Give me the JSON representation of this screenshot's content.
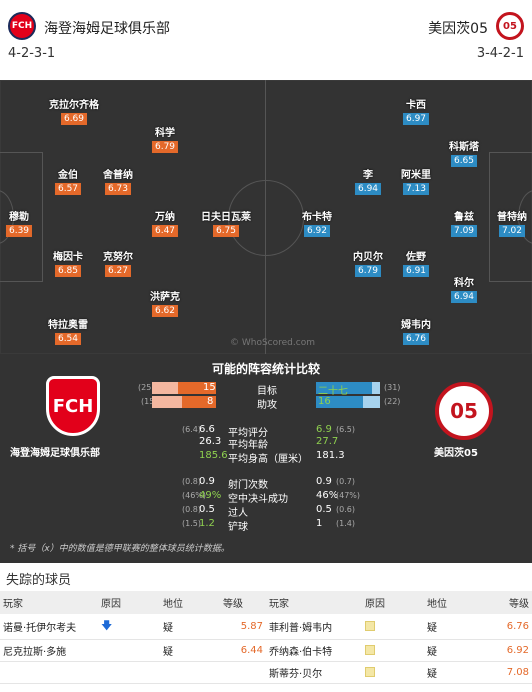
{
  "header": {
    "home_name": "海登海姆足球俱乐部",
    "away_name": "美因茨05",
    "home_formation": "4-2-3-1",
    "away_formation": "3-4-2-1",
    "home_crest": "FCH",
    "away_crest": "05"
  },
  "home_players": [
    {
      "name": "克拉尔齐格",
      "rating": "6.69"
    },
    {
      "name": "科学",
      "rating": "6.79"
    },
    {
      "name": "金伯",
      "rating": "6.57"
    },
    {
      "name": "舍普纳",
      "rating": "6.73"
    },
    {
      "name": "穆勒",
      "rating": "6.39"
    },
    {
      "name": "万纳",
      "rating": "6.47"
    },
    {
      "name": "日夫日瓦莱",
      "rating": "6.75"
    },
    {
      "name": "梅因卡",
      "rating": "6.85"
    },
    {
      "name": "克努尔",
      "rating": "6.27"
    },
    {
      "name": "洪萨克",
      "rating": "6.62"
    },
    {
      "name": "特拉奥雷",
      "rating": "6.54"
    }
  ],
  "away_players": [
    {
      "name": "卡西",
      "rating": "6.97"
    },
    {
      "name": "科斯塔",
      "rating": "6.65"
    },
    {
      "name": "李",
      "rating": "6.94"
    },
    {
      "name": "阿米里",
      "rating": "7.13"
    },
    {
      "name": "布卡特",
      "rating": "6.92"
    },
    {
      "name": "鲁兹",
      "rating": "7.09"
    },
    {
      "name": "普特纳",
      "rating": "7.02"
    },
    {
      "name": "内贝尔",
      "rating": "6.79"
    },
    {
      "name": "佐野",
      "rating": "6.91"
    },
    {
      "name": "科尔",
      "rating": "6.94"
    },
    {
      "name": "姆韦内",
      "rating": "6.76"
    }
  ],
  "watermark": "© WhoScored.com",
  "comparison": {
    "title": "可能的阵容统计比较",
    "home_team": "海登海姆足球俱乐部",
    "away_team": "美因茨05",
    "bars": [
      {
        "label": "目标",
        "home": "15",
        "home_avg": "(25)",
        "away": "二十七",
        "away_avg": "(31)",
        "home_frac": 0.6,
        "away_frac": 0.87
      },
      {
        "label": "助攻",
        "home": "8",
        "home_avg": "(15",
        "away": "16",
        "away_avg": "(22)",
        "home_frac": 0.53,
        "away_frac": 0.73
      }
    ],
    "rows": [
      {
        "label": "平均评分",
        "home_avg": "(6.4)",
        "home": "6.6",
        "away": "6.9",
        "away_avg": "(6.5)",
        "green": "away"
      },
      {
        "label": "平均年龄",
        "home_avg": "",
        "home": "26.3",
        "away": "27.7",
        "away_avg": "",
        "green": "away"
      },
      {
        "label": "平均身高（厘米）",
        "home_avg": "",
        "home": "185.6",
        "away": "181.3",
        "away_avg": "",
        "green": "home"
      },
      {
        "label": "射门次数",
        "home_avg": "(0.8)",
        "home": "0.9",
        "away": "0.9",
        "away_avg": "(0.7)",
        "green": ""
      },
      {
        "label": "空中决斗成功",
        "home_avg": "(46%)",
        "home": "49%",
        "away": "46%",
        "away_avg": "(47%)",
        "green": "home"
      },
      {
        "label": "过人",
        "home_avg": "(0.8)",
        "home": "0.5",
        "away": "0.5",
        "away_avg": "(0.6)",
        "green": ""
      },
      {
        "label": "铲球",
        "home_avg": "(1.5)",
        "home": "1.2",
        "away": "1",
        "away_avg": "(1.4)",
        "green": "home"
      }
    ],
    "note": "* 括号（x）中的数值是德甲联赛的整体球员统计数据。"
  },
  "missing": {
    "title": "失踪的球员",
    "headers": [
      "玩家",
      "原因",
      "地位",
      "等级",
      "玩家",
      "原因",
      "地位",
      "等级"
    ],
    "home": [
      {
        "name": "诺曼·托伊尔考夫",
        "status": "疑",
        "rating": "5.87",
        "reason": "down"
      },
      {
        "name": "尼克拉斯·多施",
        "status": "疑",
        "rating": "6.44",
        "reason": "none"
      }
    ],
    "away": [
      {
        "name": "菲利普·姆韦内",
        "status": "疑",
        "rating": "6.76"
      },
      {
        "name": "乔纳森·伯卡特",
        "status": "疑",
        "rating": "6.92"
      },
      {
        "name": "斯蒂芬·贝尔",
        "status": "疑",
        "rating": "7.08"
      }
    ]
  }
}
